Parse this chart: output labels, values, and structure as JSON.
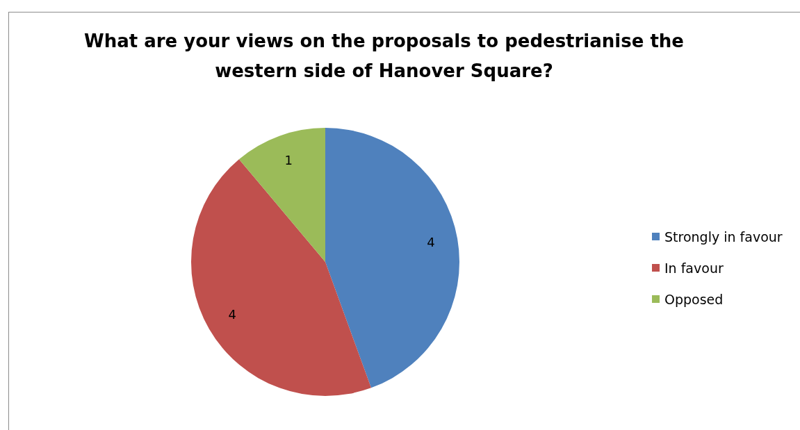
{
  "chart_data": {
    "type": "pie",
    "title": "What are your views on the proposals to pedestrianise the western side of Hanover Square?",
    "categories": [
      "Strongly in favour",
      "In favour",
      "Opposed"
    ],
    "values": [
      4,
      4,
      1
    ],
    "colors": [
      "#4f81bd",
      "#c0504d",
      "#9bbb59"
    ],
    "data_labels": true,
    "legend": "right"
  }
}
